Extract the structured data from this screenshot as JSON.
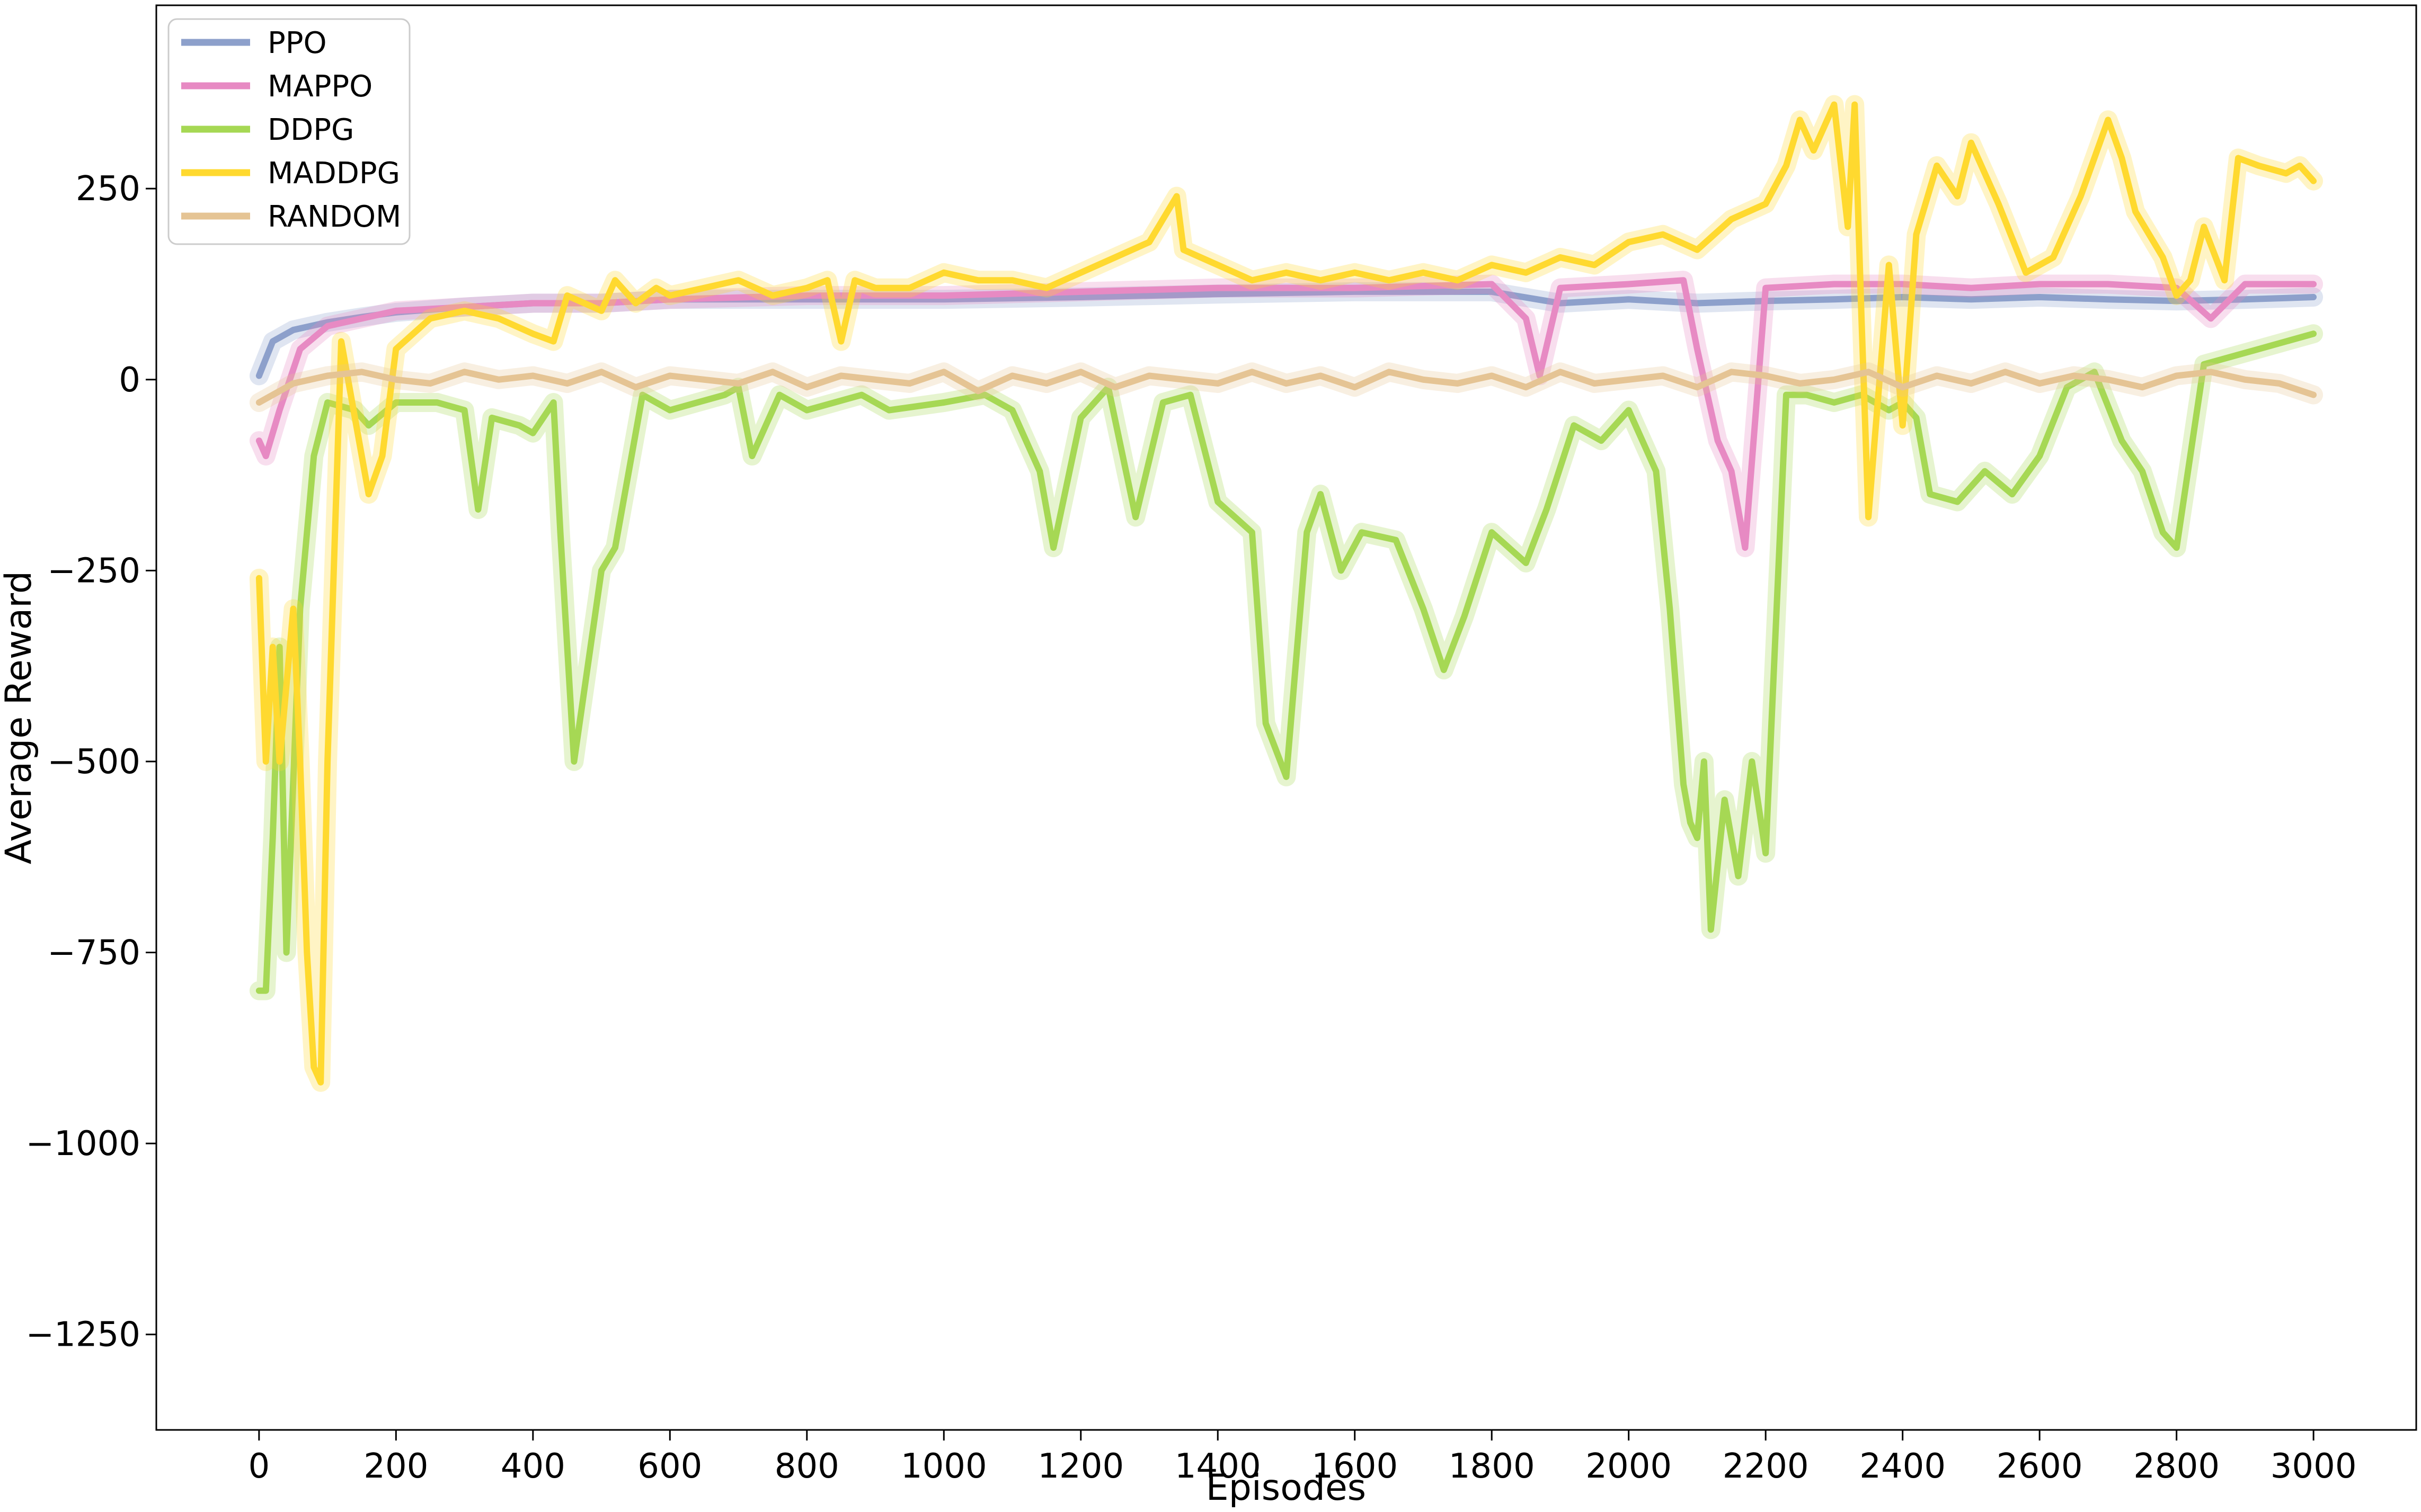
{
  "chart_data": {
    "type": "line",
    "title": "",
    "xlabel": "Episodes",
    "ylabel": "Average Reward",
    "xlim": [
      -150,
      3150
    ],
    "ylim": [
      -1375,
      490
    ],
    "xticks": [
      0,
      200,
      400,
      600,
      800,
      1000,
      1200,
      1400,
      1600,
      1800,
      2000,
      2200,
      2400,
      2600,
      2800,
      3000
    ],
    "xtick_labels": [
      "0",
      "200",
      "400",
      "600",
      "800",
      "1000",
      "1200",
      "1400",
      "1600",
      "1800",
      "2000",
      "2200",
      "2400",
      "2600",
      "2800",
      "3000"
    ],
    "yticks": [
      250,
      0,
      -250,
      -500,
      -750,
      -1000,
      -1250
    ],
    "ytick_labels": [
      "250",
      "0",
      "−250",
      "−500",
      "−750",
      "−1000",
      "−1250"
    ],
    "grid": false,
    "legend_position": "top-left",
    "series": [
      {
        "name": "PPO",
        "color": "#8da0cb",
        "x": [
          0,
          20,
          50,
          100,
          150,
          200,
          300,
          400,
          500,
          600,
          800,
          1000,
          1200,
          1400,
          1600,
          1800,
          1900,
          2000,
          2100,
          2200,
          2300,
          2400,
          2500,
          2600,
          2700,
          2800,
          2900,
          3000
        ],
        "y": [
          5,
          50,
          65,
          75,
          82,
          88,
          95,
          100,
          100,
          105,
          105,
          105,
          108,
          112,
          115,
          115,
          100,
          105,
          100,
          103,
          105,
          108,
          105,
          108,
          105,
          103,
          105,
          108
        ]
      },
      {
        "name": "MAPPO",
        "color": "#e78ac3",
        "x": [
          0,
          10,
          30,
          60,
          100,
          150,
          200,
          300,
          400,
          500,
          600,
          800,
          1000,
          1200,
          1400,
          1600,
          1800,
          1850,
          1870,
          1900,
          2000,
          2080,
          2100,
          2130,
          2150,
          2170,
          2200,
          2300,
          2400,
          2500,
          2600,
          2700,
          2800,
          2850,
          2900,
          3000
        ],
        "y": [
          -80,
          -100,
          -40,
          40,
          70,
          80,
          90,
          95,
          100,
          100,
          105,
          110,
          110,
          115,
          120,
          120,
          125,
          80,
          5,
          120,
          125,
          130,
          40,
          -80,
          -120,
          -220,
          120,
          125,
          125,
          120,
          125,
          125,
          120,
          80,
          125,
          125
        ]
      },
      {
        "name": "DDPG",
        "color": "#a6d854",
        "x": [
          0,
          10,
          20,
          30,
          40,
          60,
          80,
          100,
          140,
          160,
          200,
          260,
          300,
          320,
          340,
          380,
          400,
          430,
          440,
          460,
          500,
          520,
          560,
          600,
          640,
          680,
          700,
          720,
          760,
          800,
          880,
          920,
          1000,
          1060,
          1100,
          1140,
          1160,
          1200,
          1240,
          1280,
          1320,
          1360,
          1400,
          1450,
          1470,
          1500,
          1530,
          1550,
          1580,
          1610,
          1660,
          1700,
          1730,
          1760,
          1800,
          1850,
          1880,
          1920,
          1960,
          2000,
          2040,
          2060,
          2080,
          2090,
          2100,
          2110,
          2120,
          2140,
          2160,
          2180,
          2200,
          2230,
          2260,
          2300,
          2340,
          2380,
          2400,
          2420,
          2440,
          2480,
          2520,
          2560,
          2600,
          2640,
          2680,
          2720,
          2750,
          2780,
          2800,
          2840,
          2880,
          2920,
          2960,
          3000
        ],
        "y": [
          -800,
          -800,
          -600,
          -350,
          -750,
          -300,
          -100,
          -30,
          -40,
          -60,
          -30,
          -30,
          -40,
          -170,
          -50,
          -60,
          -70,
          -30,
          -200,
          -500,
          -250,
          -220,
          -20,
          -40,
          -30,
          -20,
          -10,
          -100,
          -20,
          -40,
          -20,
          -40,
          -30,
          -20,
          -40,
          -120,
          -220,
          -50,
          -10,
          -180,
          -30,
          -20,
          -160,
          -200,
          -450,
          -520,
          -200,
          -150,
          -250,
          -200,
          -210,
          -300,
          -380,
          -310,
          -200,
          -240,
          -170,
          -60,
          -80,
          -40,
          -120,
          -300,
          -530,
          -580,
          -600,
          -500,
          -720,
          -550,
          -650,
          -500,
          -620,
          -20,
          -20,
          -30,
          -20,
          -40,
          -30,
          -50,
          -150,
          -160,
          -120,
          -150,
          -100,
          -10,
          10,
          -80,
          -120,
          -200,
          -220,
          20,
          30,
          40,
          50,
          60
        ]
      },
      {
        "name": "MADDPG",
        "color": "#ffd92f",
        "x": [
          0,
          10,
          20,
          30,
          40,
          50,
          60,
          70,
          80,
          90,
          100,
          120,
          140,
          160,
          180,
          200,
          250,
          300,
          350,
          400,
          430,
          450,
          500,
          520,
          550,
          580,
          600,
          650,
          700,
          750,
          800,
          830,
          850,
          870,
          900,
          950,
          1000,
          1050,
          1100,
          1150,
          1200,
          1250,
          1300,
          1340,
          1350,
          1400,
          1450,
          1500,
          1550,
          1600,
          1650,
          1700,
          1750,
          1800,
          1850,
          1900,
          1950,
          2000,
          2050,
          2100,
          2150,
          2200,
          2230,
          2250,
          2270,
          2300,
          2310,
          2320,
          2330,
          2340,
          2350,
          2380,
          2400,
          2420,
          2450,
          2480,
          2500,
          2540,
          2580,
          2620,
          2660,
          2700,
          2720,
          2740,
          2780,
          2800,
          2820,
          2840,
          2870,
          2890,
          2920,
          2960,
          2980,
          3000
        ],
        "y": [
          -260,
          -500,
          -350,
          -500,
          -400,
          -300,
          -500,
          -750,
          -900,
          -920,
          -500,
          50,
          -50,
          -150,
          -100,
          40,
          80,
          90,
          80,
          60,
          50,
          110,
          90,
          130,
          100,
          120,
          110,
          120,
          130,
          110,
          120,
          130,
          50,
          130,
          120,
          120,
          140,
          130,
          130,
          120,
          140,
          160,
          180,
          240,
          170,
          150,
          130,
          140,
          130,
          140,
          130,
          140,
          130,
          150,
          140,
          160,
          150,
          180,
          190,
          170,
          210,
          230,
          280,
          340,
          300,
          360,
          280,
          200,
          360,
          80,
          -180,
          150,
          -60,
          190,
          280,
          240,
          310,
          230,
          140,
          160,
          240,
          340,
          290,
          220,
          160,
          110,
          130,
          200,
          130,
          290,
          280,
          270,
          280,
          260
        ]
      },
      {
        "name": "RANDOM",
        "color": "#e5c494",
        "x": [
          0,
          50,
          100,
          150,
          200,
          250,
          300,
          350,
          400,
          450,
          500,
          550,
          600,
          650,
          700,
          750,
          800,
          850,
          900,
          950,
          1000,
          1050,
          1100,
          1150,
          1200,
          1250,
          1300,
          1350,
          1400,
          1450,
          1500,
          1550,
          1600,
          1650,
          1700,
          1750,
          1800,
          1850,
          1900,
          1950,
          2000,
          2050,
          2100,
          2150,
          2200,
          2250,
          2300,
          2350,
          2400,
          2450,
          2500,
          2550,
          2600,
          2650,
          2700,
          2750,
          2800,
          2850,
          2900,
          2950,
          3000
        ],
        "y": [
          -30,
          -5,
          5,
          10,
          0,
          -5,
          10,
          0,
          5,
          -5,
          10,
          -10,
          5,
          0,
          -5,
          10,
          -10,
          5,
          0,
          -5,
          10,
          -15,
          5,
          -5,
          10,
          -10,
          5,
          0,
          -5,
          10,
          -5,
          5,
          -10,
          10,
          0,
          -5,
          5,
          -10,
          10,
          -5,
          0,
          5,
          -10,
          10,
          5,
          -5,
          0,
          10,
          -10,
          5,
          -5,
          10,
          -5,
          5,
          0,
          -10,
          5,
          10,
          0,
          -5,
          -20
        ]
      }
    ]
  }
}
